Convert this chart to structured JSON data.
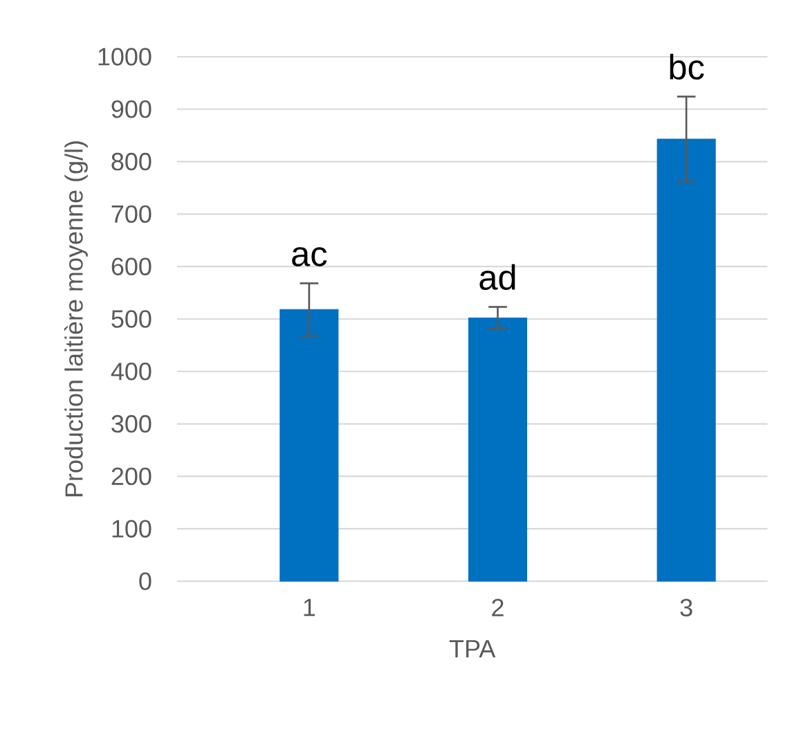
{
  "chart_data": {
    "type": "bar",
    "xlabel": "TPA",
    "ylabel": "Production laitière moyenne (g/l)",
    "categories": [
      "1",
      "2",
      "3"
    ],
    "values": [
      518,
      502,
      843
    ],
    "errors": [
      50,
      21,
      81
    ],
    "color": "#0070c0",
    "ylim": [
      0,
      1000
    ],
    "yticks": [
      0,
      100,
      200,
      300,
      400,
      500,
      600,
      700,
      800,
      900,
      1000
    ],
    "grid": "y",
    "annotations": [
      "ac",
      "ad",
      "bc"
    ]
  }
}
